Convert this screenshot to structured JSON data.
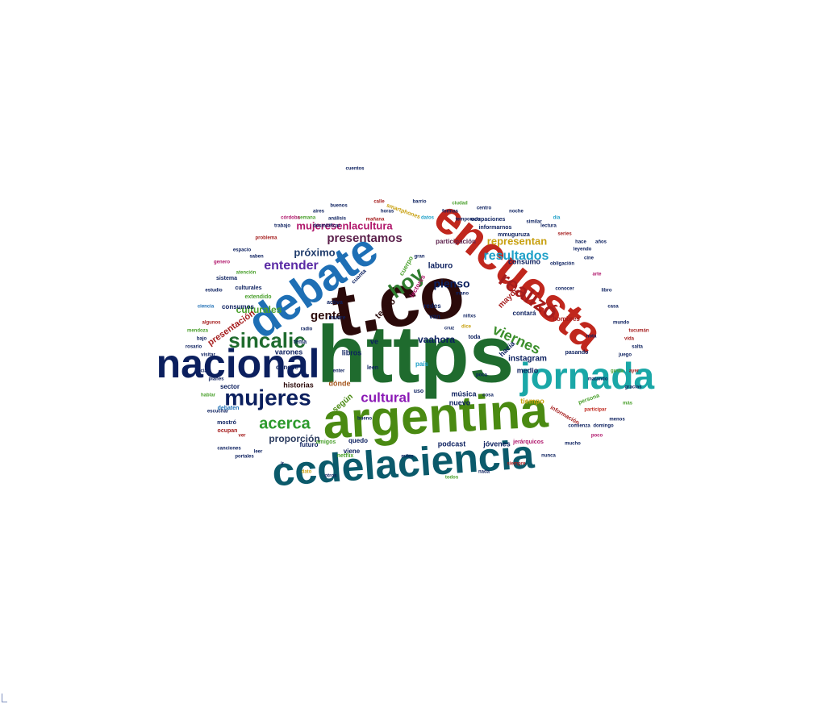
{
  "words": [
    {
      "text": "https",
      "color": "#1f6b2e"
    },
    {
      "text": "t.co",
      "color": "#2b0a0a"
    },
    {
      "text": "encuesta",
      "color": "#c0271d"
    },
    {
      "text": "argentina",
      "color": "#4a8a12"
    },
    {
      "text": "debate",
      "color": "#1e6fb5"
    },
    {
      "text": "nacional",
      "color": "#0b1f5e"
    },
    {
      "text": "jornada",
      "color": "#1aa7a7"
    },
    {
      "text": "ccdelaciencia",
      "color": "#0b5a6b"
    },
    {
      "text": "mujeres",
      "color": "#0b1f5e"
    },
    {
      "text": "realizó",
      "color": "#a51d1d"
    },
    {
      "text": "sincalic",
      "color": "#1f6b2e"
    },
    {
      "text": "hoy",
      "color": "#2f7d2f"
    },
    {
      "text": "viernes",
      "color": "#3c8f2c"
    },
    {
      "text": "presentamos",
      "color": "#5a1f4a"
    },
    {
      "text": "mujeresenlacultura",
      "color": "#b0166b"
    },
    {
      "text": "cultural",
      "color": "#8a18b5"
    },
    {
      "text": "acerca",
      "color": "#2c9a2c"
    },
    {
      "text": "resultados",
      "color": "#1ea0c8"
    },
    {
      "text": "representan",
      "color": "#c8a010"
    },
    {
      "text": "entender",
      "color": "#5a2aa5"
    },
    {
      "text": "gente",
      "color": "#2b0a0a"
    },
    {
      "text": "pienso",
      "color": "#0b1f5e"
    },
    {
      "text": "próximo",
      "color": "#1f3b6b"
    },
    {
      "text": "culturales",
      "color": "#4aa02c"
    },
    {
      "text": "proporción",
      "color": "#2b3b5e"
    },
    {
      "text": "vaahora",
      "color": "#0b1f5e"
    },
    {
      "text": "presentación",
      "color": "#a51d1d"
    },
    {
      "text": "consumo",
      "color": "#0b1f5e"
    },
    {
      "text": "laburo",
      "color": "#0b1f5e"
    },
    {
      "text": "teatro",
      "color": "#2b0a0a"
    },
    {
      "text": "instagram",
      "color": "#0b1f5e"
    },
    {
      "text": "mayor",
      "color": "#a51d1d"
    },
    {
      "text": "historias",
      "color": "#2b0a0a"
    },
    {
      "text": "varones",
      "color": "#0b1f5e"
    },
    {
      "text": "libros",
      "color": "#0b1f5e"
    },
    {
      "text": "hacia",
      "color": "#0b1f5e"
    },
    {
      "text": "medio",
      "color": "#0b1f5e"
    },
    {
      "text": "música",
      "color": "#0b1f5e"
    },
    {
      "text": "nuevo",
      "color": "#0b1f5e"
    },
    {
      "text": "podcast",
      "color": "#0b1f5e"
    },
    {
      "text": "jóvenes",
      "color": "#0b1f5e"
    },
    {
      "text": "tiempo",
      "color": "#c8a010"
    },
    {
      "text": "hombres",
      "color": "#a51d1d"
    },
    {
      "text": "según",
      "color": "#4a8a12"
    },
    {
      "text": "dónde",
      "color": "#a5561d"
    },
    {
      "text": "conocé",
      "color": "#0b1f5e"
    },
    {
      "text": "quedo",
      "color": "#0b1f5e"
    },
    {
      "text": "futuro",
      "color": "#0b1f5e"
    },
    {
      "text": "sector",
      "color": "#0b1f5e"
    },
    {
      "text": "contará",
      "color": "#0b1f5e"
    },
    {
      "text": "redes",
      "color": "#0b1f5e"
    },
    {
      "text": "van",
      "color": "#0b1f5e"
    },
    {
      "text": "viene",
      "color": "#0b1f5e"
    },
    {
      "text": "participación",
      "color": "#5a1f4a"
    },
    {
      "text": "ocupaciones",
      "color": "#0b1f5e"
    },
    {
      "text": "mmuguruza",
      "color": "#0b1f5e"
    },
    {
      "text": "informarnos",
      "color": "#0b1f5e"
    },
    {
      "text": "extendido",
      "color": "#4aa02c"
    },
    {
      "text": "consumos",
      "color": "#0b1f5e"
    },
    {
      "text": "culturales",
      "color": "#0b1f5e"
    },
    {
      "text": "ocupan",
      "color": "#a51d1d"
    },
    {
      "text": "sistema",
      "color": "#0b1f5e"
    },
    {
      "text": "netflix",
      "color": "#4aa02c"
    },
    {
      "text": "jerárquicos",
      "color": "#b0166b"
    },
    {
      "text": "pasando",
      "color": "#0b1f5e"
    },
    {
      "text": "información",
      "color": "#a51d1d"
    },
    {
      "text": "lectores",
      "color": "#b0166b"
    },
    {
      "text": "cuerpo",
      "color": "#4aa02c"
    },
    {
      "text": "smartphones",
      "color": "#c8a010"
    },
    {
      "text": "mostró",
      "color": "#0b1f5e"
    },
    {
      "text": "tema",
      "color": "#0b1f5e"
    },
    {
      "text": "activa",
      "color": "#0b1f5e"
    },
    {
      "text": "muere",
      "color": "#0b1f5e"
    },
    {
      "text": "desmitificar",
      "color": "#0b1f5e"
    },
    {
      "text": "mañana",
      "color": "#a51d1d"
    },
    {
      "text": "análisis",
      "color": "#0b1f5e"
    },
    {
      "text": "formas",
      "color": "#0b1f5e"
    },
    {
      "text": "similar",
      "color": "#0b1f5e"
    },
    {
      "text": "obligación",
      "color": "#0b1f5e"
    },
    {
      "text": "leyendo",
      "color": "#0b1f5e"
    },
    {
      "text": "domingo",
      "color": "#0b1f5e"
    },
    {
      "text": "comienza",
      "color": "#0b1f5e"
    },
    {
      "text": "matando",
      "color": "#0b1f5e"
    },
    {
      "text": "canciones",
      "color": "#0b1f5e"
    },
    {
      "text": "portales",
      "color": "#0b1f5e"
    },
    {
      "text": "saben",
      "color": "#0b1f5e"
    },
    {
      "text": "temporada",
      "color": "#0b1f5e"
    },
    {
      "text": "miles",
      "color": "#0b1f5e"
    },
    {
      "text": "niñxs",
      "color": "#0b1f5e"
    },
    {
      "text": "cruz",
      "color": "#0b1f5e"
    },
    {
      "text": "uso",
      "color": "#0b1f5e"
    },
    {
      "text": "toda",
      "color": "#0b1f5e"
    },
    {
      "text": "leen",
      "color": "#0b1f5e"
    },
    {
      "text": "nota",
      "color": "#0b1f5e"
    },
    {
      "text": "persona",
      "color": "#4aa02c"
    },
    {
      "text": "cuentos",
      "color": "#0b1f5e"
    },
    {
      "text": "bueno",
      "color": "#0b1f5e"
    },
    {
      "text": "enter",
      "color": "#0b1f5e"
    },
    {
      "text": "poca",
      "color": "#0b1f5e"
    },
    {
      "text": "ve",
      "color": "#0b1f5e"
    },
    {
      "text": "país",
      "color": "#1ea0c8"
    },
    {
      "text": "dice",
      "color": "#c8a010"
    },
    {
      "text": "gran",
      "color": "#0b1f5e"
    },
    {
      "text": "mano",
      "color": "#0b1f5e"
    },
    {
      "text": "cosa",
      "color": "#0b1f5e"
    },
    {
      "text": "radio",
      "color": "#0b1f5e"
    },
    {
      "text": "cuanta",
      "color": "#0b1f5e"
    },
    {
      "text": "debaten",
      "color": "#1e6fb5"
    },
    {
      "text": "conocer",
      "color": "#0b1f5e"
    },
    {
      "text": "atención",
      "color": "#4aa02c"
    },
    {
      "text": "participar",
      "color": "#c0271d"
    },
    {
      "text": "amigos",
      "color": "#4aa02c"
    },
    {
      "text": "visitar",
      "color": "#0b1f5e"
    },
    {
      "text": "bajo",
      "color": "#0b1f5e"
    },
    {
      "text": "algunos",
      "color": "#a51d1d"
    },
    {
      "text": "planes",
      "color": "#0b1f5e"
    },
    {
      "text": "juego",
      "color": "#0b1f5e"
    },
    {
      "text": "vida",
      "color": "#a51d1d"
    },
    {
      "text": "mundo",
      "color": "#0b1f5e"
    },
    {
      "text": "gusta",
      "color": "#4aa02c"
    },
    {
      "text": "casa",
      "color": "#0b1f5e"
    },
    {
      "text": "libro",
      "color": "#0b1f5e"
    },
    {
      "text": "arte",
      "color": "#b0166b"
    },
    {
      "text": "cine",
      "color": "#0b1f5e"
    },
    {
      "text": "series",
      "color": "#a51d1d"
    },
    {
      "text": "lectura",
      "color": "#0b1f5e"
    },
    {
      "text": "datos",
      "color": "#1ea0c8"
    },
    {
      "text": "horas",
      "color": "#0b1f5e"
    },
    {
      "text": "semana",
      "color": "#4aa02c"
    },
    {
      "text": "trabajo",
      "color": "#0b1f5e"
    },
    {
      "text": "problema",
      "color": "#a51d1d"
    },
    {
      "text": "espacio",
      "color": "#0b1f5e"
    },
    {
      "text": "genero",
      "color": "#b0166b"
    },
    {
      "text": "estudio",
      "color": "#0b1f5e"
    },
    {
      "text": "ciencia",
      "color": "#1e6fb5"
    },
    {
      "text": "social",
      "color": "#0b1f5e"
    },
    {
      "text": "hablar",
      "color": "#4aa02c"
    },
    {
      "text": "escuchar",
      "color": "#0b1f5e"
    },
    {
      "text": "ver",
      "color": "#a51d1d"
    },
    {
      "text": "leer",
      "color": "#0b1f5e"
    },
    {
      "text": "ir",
      "color": "#0b1f5e"
    },
    {
      "text": "dato",
      "color": "#c8a010"
    },
    {
      "text": "otros",
      "color": "#0b1f5e"
    },
    {
      "text": "todos",
      "color": "#4aa02c"
    },
    {
      "text": "nada",
      "color": "#0b1f5e"
    },
    {
      "text": "siempre",
      "color": "#a51d1d"
    },
    {
      "text": "nunca",
      "color": "#0b1f5e"
    },
    {
      "text": "mucho",
      "color": "#0b1f5e"
    },
    {
      "text": "poco",
      "color": "#b0166b"
    },
    {
      "text": "menos",
      "color": "#0b1f5e"
    },
    {
      "text": "más",
      "color": "#4aa02c"
    },
    {
      "text": "gracias",
      "color": "#0b1f5e"
    },
    {
      "text": "ayer",
      "color": "#a51d1d"
    },
    {
      "text": "hace",
      "color": "#0b1f5e"
    },
    {
      "text": "años",
      "color": "#0b1f5e"
    },
    {
      "text": "día",
      "color": "#1ea0c8"
    },
    {
      "text": "noche",
      "color": "#0b1f5e"
    },
    {
      "text": "centro",
      "color": "#0b1f5e"
    },
    {
      "text": "ciudad",
      "color": "#4aa02c"
    },
    {
      "text": "barrio",
      "color": "#0b1f5e"
    },
    {
      "text": "calle",
      "color": "#a51d1d"
    },
    {
      "text": "buenos",
      "color": "#0b1f5e"
    },
    {
      "text": "aires",
      "color": "#0b1f5e"
    },
    {
      "text": "córdoba",
      "color": "#b0166b"
    },
    {
      "text": "rosario",
      "color": "#0b1f5e"
    },
    {
      "text": "mendoza",
      "color": "#4aa02c"
    },
    {
      "text": "salta",
      "color": "#0b1f5e"
    },
    {
      "text": "tucumán",
      "color": "#a51d1d"
    }
  ]
}
